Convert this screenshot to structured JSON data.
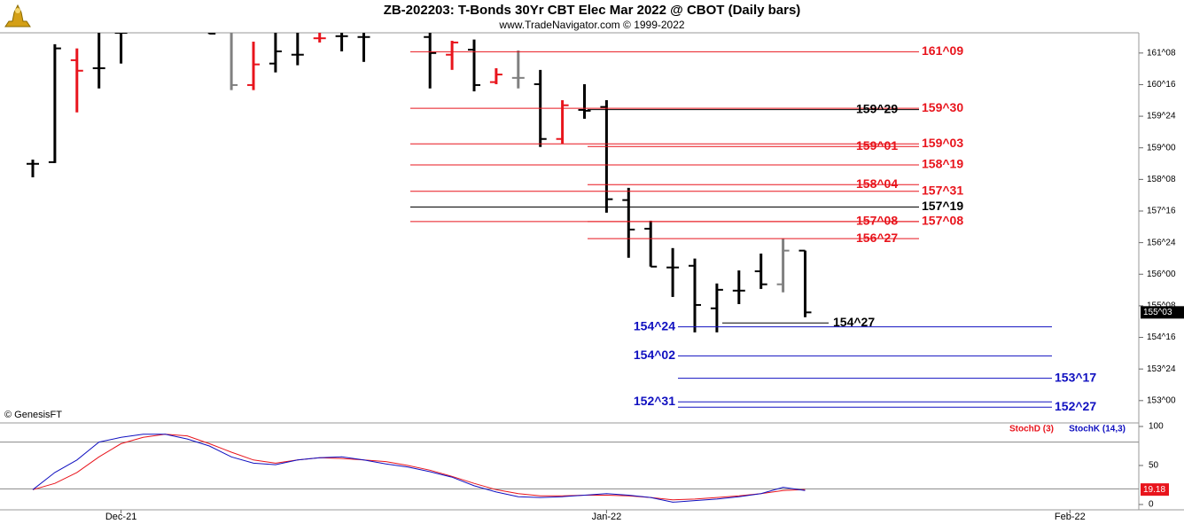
{
  "chart_data": [
    {
      "type": "ohlc",
      "title": "ZB-202203:  T-Bonds 30Yr CBT Elec Mar 2022 @ CBOT  (Daily bars)",
      "subtitle": "www.TradeNavigator.com © 1999-2022",
      "annotation": "© GenesisFT",
      "categories": [
        null,
        null,
        null,
        null,
        "Dec-21",
        null,
        null,
        null,
        null,
        null,
        null,
        null,
        null,
        null,
        null,
        null,
        null,
        null,
        null,
        null,
        null,
        null,
        null,
        null,
        null,
        null,
        "Jan-22",
        null,
        null,
        null,
        null,
        null,
        null,
        null,
        null,
        null,
        null,
        null,
        null,
        null,
        null,
        null,
        null,
        null,
        null,
        null,
        null,
        "Feb-22",
        null,
        null
      ],
      "open": [
        158.62,
        158.66,
        161.08,
        160.89,
        161.73,
        null,
        null,
        null,
        161.9,
        161.8,
        160.49,
        161.0,
        161.21,
        161.6,
        161.65,
        161.63,
        null,
        null,
        161.63,
        161.21,
        161.33,
        160.56,
        160.66,
        160.51,
        159.21,
        159.9,
        159.97,
        157.76,
        157.08,
        156.16,
        156.2,
        155.19,
        155.61,
        156.07,
        155.76,
        156.56,
        null,
        null,
        null,
        null,
        null,
        null,
        null,
        null,
        null,
        null,
        null,
        null,
        null,
        null
      ],
      "high": [
        158.72,
        161.46,
        161.36,
        161.8,
        161.8,
        null,
        null,
        null,
        162.0,
        162.0,
        161.52,
        161.8,
        161.8,
        161.73,
        161.8,
        161.8,
        null,
        null,
        161.8,
        161.54,
        161.57,
        160.89,
        161.31,
        160.85,
        160.13,
        160.51,
        160.13,
        158.05,
        157.27,
        156.62,
        156.37,
        155.78,
        156.09,
        156.49,
        156.85,
        156.56,
        null,
        null,
        null,
        null,
        null,
        null,
        null,
        null,
        null,
        null,
        null,
        null,
        null,
        null
      ],
      "low": [
        158.3,
        158.64,
        159.84,
        160.41,
        161.0,
        null,
        null,
        null,
        161.7,
        160.37,
        160.37,
        160.79,
        160.96,
        161.5,
        161.29,
        161.04,
        null,
        null,
        160.41,
        160.85,
        160.34,
        160.51,
        160.41,
        159.02,
        159.1,
        159.69,
        157.46,
        156.39,
        156.18,
        155.46,
        154.62,
        154.62,
        155.29,
        155.65,
        155.57,
        154.98,
        null,
        null,
        null,
        null,
        null,
        null,
        null,
        null,
        null,
        null,
        null,
        null,
        null,
        null
      ],
      "close": [
        158.62,
        161.36,
        160.83,
        160.89,
        161.73,
        null,
        null,
        null,
        161.71,
        160.49,
        160.98,
        161.29,
        161.21,
        161.6,
        161.65,
        161.63,
        null,
        null,
        161.25,
        161.5,
        160.49,
        160.74,
        160.66,
        159.21,
        160.01,
        159.88,
        157.78,
        157.06,
        156.18,
        156.16,
        155.27,
        155.63,
        155.61,
        155.76,
        156.56,
        155.09375,
        null,
        null,
        null,
        null,
        null,
        null,
        null,
        null,
        null,
        null,
        null,
        null,
        null,
        null
      ],
      "bar_colors": [
        "#000000",
        "#000000",
        "#e8141c",
        "#000000",
        "#000000",
        null,
        null,
        null,
        "#000000",
        "#808080",
        "#e8141c",
        "#000000",
        "#000000",
        "#e8141c",
        "#000000",
        "#000000",
        null,
        null,
        "#000000",
        "#e8141c",
        "#000000",
        "#e8141c",
        "#808080",
        "#000000",
        "#e8141c",
        "#000000",
        "#000000",
        "#000000",
        "#000000",
        "#000000",
        "#000000",
        "#000000",
        "#000000",
        "#000000",
        "#808080",
        "#000000",
        null,
        null,
        null,
        null,
        null,
        null,
        null,
        null,
        null,
        null,
        null,
        null,
        null,
        null
      ],
      "ylim": [
        152.47,
        161.73
      ],
      "yticks": [
        {
          "value": 161.25,
          "label": "161^08"
        },
        {
          "value": 160.5,
          "label": "160^16"
        },
        {
          "value": 159.75,
          "label": "159^24"
        },
        {
          "value": 159,
          "label": "159^00"
        },
        {
          "value": 158.25,
          "label": "158^08"
        },
        {
          "value": 157.5,
          "label": "157^16"
        },
        {
          "value": 156.75,
          "label": "156^24"
        },
        {
          "value": 156,
          "label": "156^00"
        },
        {
          "value": 155.25,
          "label": "155^08"
        },
        {
          "value": 154.5,
          "label": "154^16"
        },
        {
          "value": 153.75,
          "label": "153^24"
        },
        {
          "value": 153,
          "label": "153^00"
        }
      ],
      "last_price": {
        "value": 155.09375,
        "label": "155^03"
      },
      "levels": [
        {
          "value": 161.28125,
          "label": "161^09",
          "color": "#e8141c"
        },
        {
          "value": 159.9375,
          "label": "159^30",
          "color": "#e8141c"
        },
        {
          "value": 159.90625,
          "label": "159^29",
          "color": "#000000"
        },
        {
          "value": 159.09375,
          "label": "159^03",
          "color": "#e8141c"
        },
        {
          "value": 159.03125,
          "label": "159^01",
          "color": "#e8141c"
        },
        {
          "value": 158.59375,
          "label": "158^19",
          "color": "#e8141c"
        },
        {
          "value": 158.125,
          "label": "158^04",
          "color": "#e8141c"
        },
        {
          "value": 157.96875,
          "label": "157^31",
          "color": "#e8141c"
        },
        {
          "value": 157.59375,
          "label": "157^19",
          "color": "#000000"
        },
        {
          "value": 157.25,
          "label": "157^08",
          "color": "#e8141c"
        },
        {
          "value": 157.25,
          "label": "157^08",
          "color": "#e8141c"
        },
        {
          "value": 156.84375,
          "label": "156^27",
          "color": "#e8141c"
        },
        {
          "value": 154.84375,
          "label": "154^27",
          "color": "#000000"
        },
        {
          "value": 154.75,
          "label": "154^24",
          "color": "#1010c0"
        },
        {
          "value": 154.0625,
          "label": "154^02",
          "color": "#1010c0"
        },
        {
          "value": 153.53125,
          "label": "153^17",
          "color": "#1010c0"
        },
        {
          "value": 152.96875,
          "label": "152^31",
          "color": "#1010c0"
        },
        {
          "value": 152.84375,
          "label": "152^27",
          "color": "#1010c0"
        }
      ]
    },
    {
      "type": "line",
      "series": [
        {
          "name": "StochD (3)",
          "color": "#e8141c",
          "values": [
            19,
            27,
            41,
            61,
            78,
            86,
            90,
            88,
            78,
            67,
            57,
            53,
            57,
            60,
            59,
            57,
            55,
            50,
            44,
            36,
            27,
            19,
            14,
            11,
            11,
            12,
            12,
            11,
            9,
            6,
            7,
            9,
            11,
            14,
            18,
            19.18,
            null,
            null,
            null,
            null,
            null,
            null,
            null,
            null,
            null,
            null,
            null,
            null,
            null,
            null
          ]
        },
        {
          "name": "StochK (14,3)",
          "color": "#1010c0",
          "values": [
            19,
            41,
            57,
            80,
            86,
            90,
            90,
            84,
            75,
            61,
            53,
            51,
            57,
            60,
            61,
            57,
            52,
            48,
            42,
            35,
            24,
            16,
            10,
            9,
            10,
            12,
            14,
            12,
            9,
            3,
            5,
            7,
            10,
            14,
            22,
            18,
            null,
            null,
            null,
            null,
            null,
            null,
            null,
            null,
            null,
            null,
            null,
            null,
            null,
            null
          ]
        }
      ],
      "ylim": [
        -6.8,
        103.4
      ],
      "yticks": [
        0,
        50,
        100
      ],
      "reference_lines": [
        80,
        20
      ]
    }
  ]
}
